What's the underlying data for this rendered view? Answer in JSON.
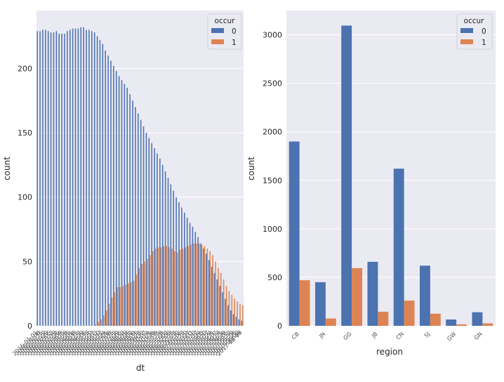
{
  "chart_data": [
    {
      "type": "bar",
      "xlabel": "dt",
      "ylabel": "count",
      "ylim": [
        0,
        245
      ],
      "yticks": [
        0,
        50,
        100,
        150,
        200
      ],
      "grid": true,
      "legend": {
        "title": "occur",
        "position": "top-right",
        "entries": [
          "0",
          "1"
        ]
      },
      "categories": [
        "2016-01-01",
        "2016-01-08",
        "2016-01-15",
        "2016-01-22",
        "2016-01-29",
        "2016-02-05",
        "2016-02-12",
        "2016-02-19",
        "2016-02-26",
        "2016-03-04",
        "2016-03-11",
        "2016-03-18",
        "2016-03-25",
        "2016-04-01",
        "2016-04-08",
        "2016-04-15",
        "2016-04-22",
        "2016-04-29",
        "2016-05-06",
        "2016-05-13",
        "2016-05-20",
        "2016-05-27",
        "2016-06-03",
        "2016-06-10",
        "2016-06-17",
        "2016-06-24",
        "2016-07-01",
        "2016-07-08",
        "2016-07-15",
        "2016-07-22",
        "2016-07-29",
        "2016-08-05",
        "2016-08-12",
        "2016-08-19",
        "2016-08-26",
        "2016-09-02",
        "2016-09-09",
        "2016-09-16",
        "2016-09-23",
        "2016-09-30",
        "2016-10-07",
        "2016-10-14",
        "2016-10-21",
        "2016-10-28",
        "2016-11-04",
        "2016-11-11",
        "2016-11-18",
        "2016-11-25",
        "2016-12-02",
        "2016-12-09",
        "2016-12-16",
        "2016-12-23",
        "2016-12-30",
        "2017-01-06",
        "2017-01-13",
        "2017-01-20",
        "2017-01-27",
        "2017-02-03",
        "2017-02-10",
        "2017-02-17",
        "2017-02-24",
        "2017-03-03",
        "2017-03-10",
        "2017-03-17",
        "2017-03-24",
        "2017-03-31",
        "2017-04-07",
        "2017-04-14",
        "2017-04-21",
        "2017-04-28",
        "2017-05-05",
        "2017-05-12",
        "2017-05-19",
        "2017-05-26",
        "2017-06-02",
        "2017-06-09"
      ],
      "series": [
        {
          "name": "0",
          "values": [
            229,
            229,
            230,
            230,
            229,
            228,
            228,
            229,
            227,
            227,
            227,
            229,
            230,
            231,
            231,
            231,
            232,
            232,
            230,
            230,
            229,
            228,
            225,
            222,
            219,
            214,
            210,
            206,
            202,
            198,
            194,
            191,
            188,
            185,
            180,
            175,
            170,
            165,
            160,
            155,
            150,
            146,
            142,
            138,
            134,
            130,
            125,
            120,
            115,
            110,
            105,
            100,
            96,
            92,
            88,
            84,
            80,
            77,
            73,
            69,
            64,
            60,
            56,
            51,
            46,
            41,
            36,
            31,
            26,
            21,
            16,
            12,
            9,
            7,
            5,
            4
          ]
        },
        {
          "name": "1",
          "values": [
            0,
            0,
            0,
            0,
            0,
            0,
            0,
            0,
            0,
            0,
            0,
            0,
            0,
            0,
            0,
            0,
            0,
            0,
            0,
            0,
            0,
            1,
            3,
            5,
            8,
            12,
            17,
            22,
            26,
            30,
            30,
            31,
            32,
            33,
            34,
            35,
            40,
            45,
            48,
            50,
            52,
            55,
            58,
            60,
            61,
            61,
            62,
            62,
            61,
            60,
            58,
            57,
            59,
            60,
            61,
            62,
            63,
            64,
            64,
            64,
            63,
            62,
            60,
            58,
            55,
            50,
            45,
            41,
            36,
            31,
            27,
            24,
            21,
            19,
            17,
            16
          ]
        }
      ],
      "xtick_labels_legible": [
        "2016-01-01",
        "2017-12-18"
      ]
    },
    {
      "type": "bar",
      "xlabel": "region",
      "ylabel": "count",
      "ylim": [
        0,
        3250
      ],
      "yticks": [
        0,
        500,
        1000,
        1500,
        2000,
        2500,
        3000
      ],
      "grid": true,
      "legend": {
        "title": "occur",
        "position": "top-right",
        "entries": [
          "0",
          "1"
        ]
      },
      "categories": [
        "CB",
        "JN",
        "GG",
        "JB",
        "CN",
        "SJ",
        "GW",
        "GN"
      ],
      "series": [
        {
          "name": "0",
          "values": [
            1900,
            450,
            3095,
            660,
            1620,
            620,
            65,
            140
          ]
        },
        {
          "name": "1",
          "values": [
            470,
            75,
            595,
            145,
            260,
            125,
            15,
            25
          ]
        }
      ]
    }
  ],
  "colors": {
    "series0": "#4c72b0",
    "series1": "#dd8452",
    "background": "#eaeaf2",
    "grid": "#ffffff"
  }
}
